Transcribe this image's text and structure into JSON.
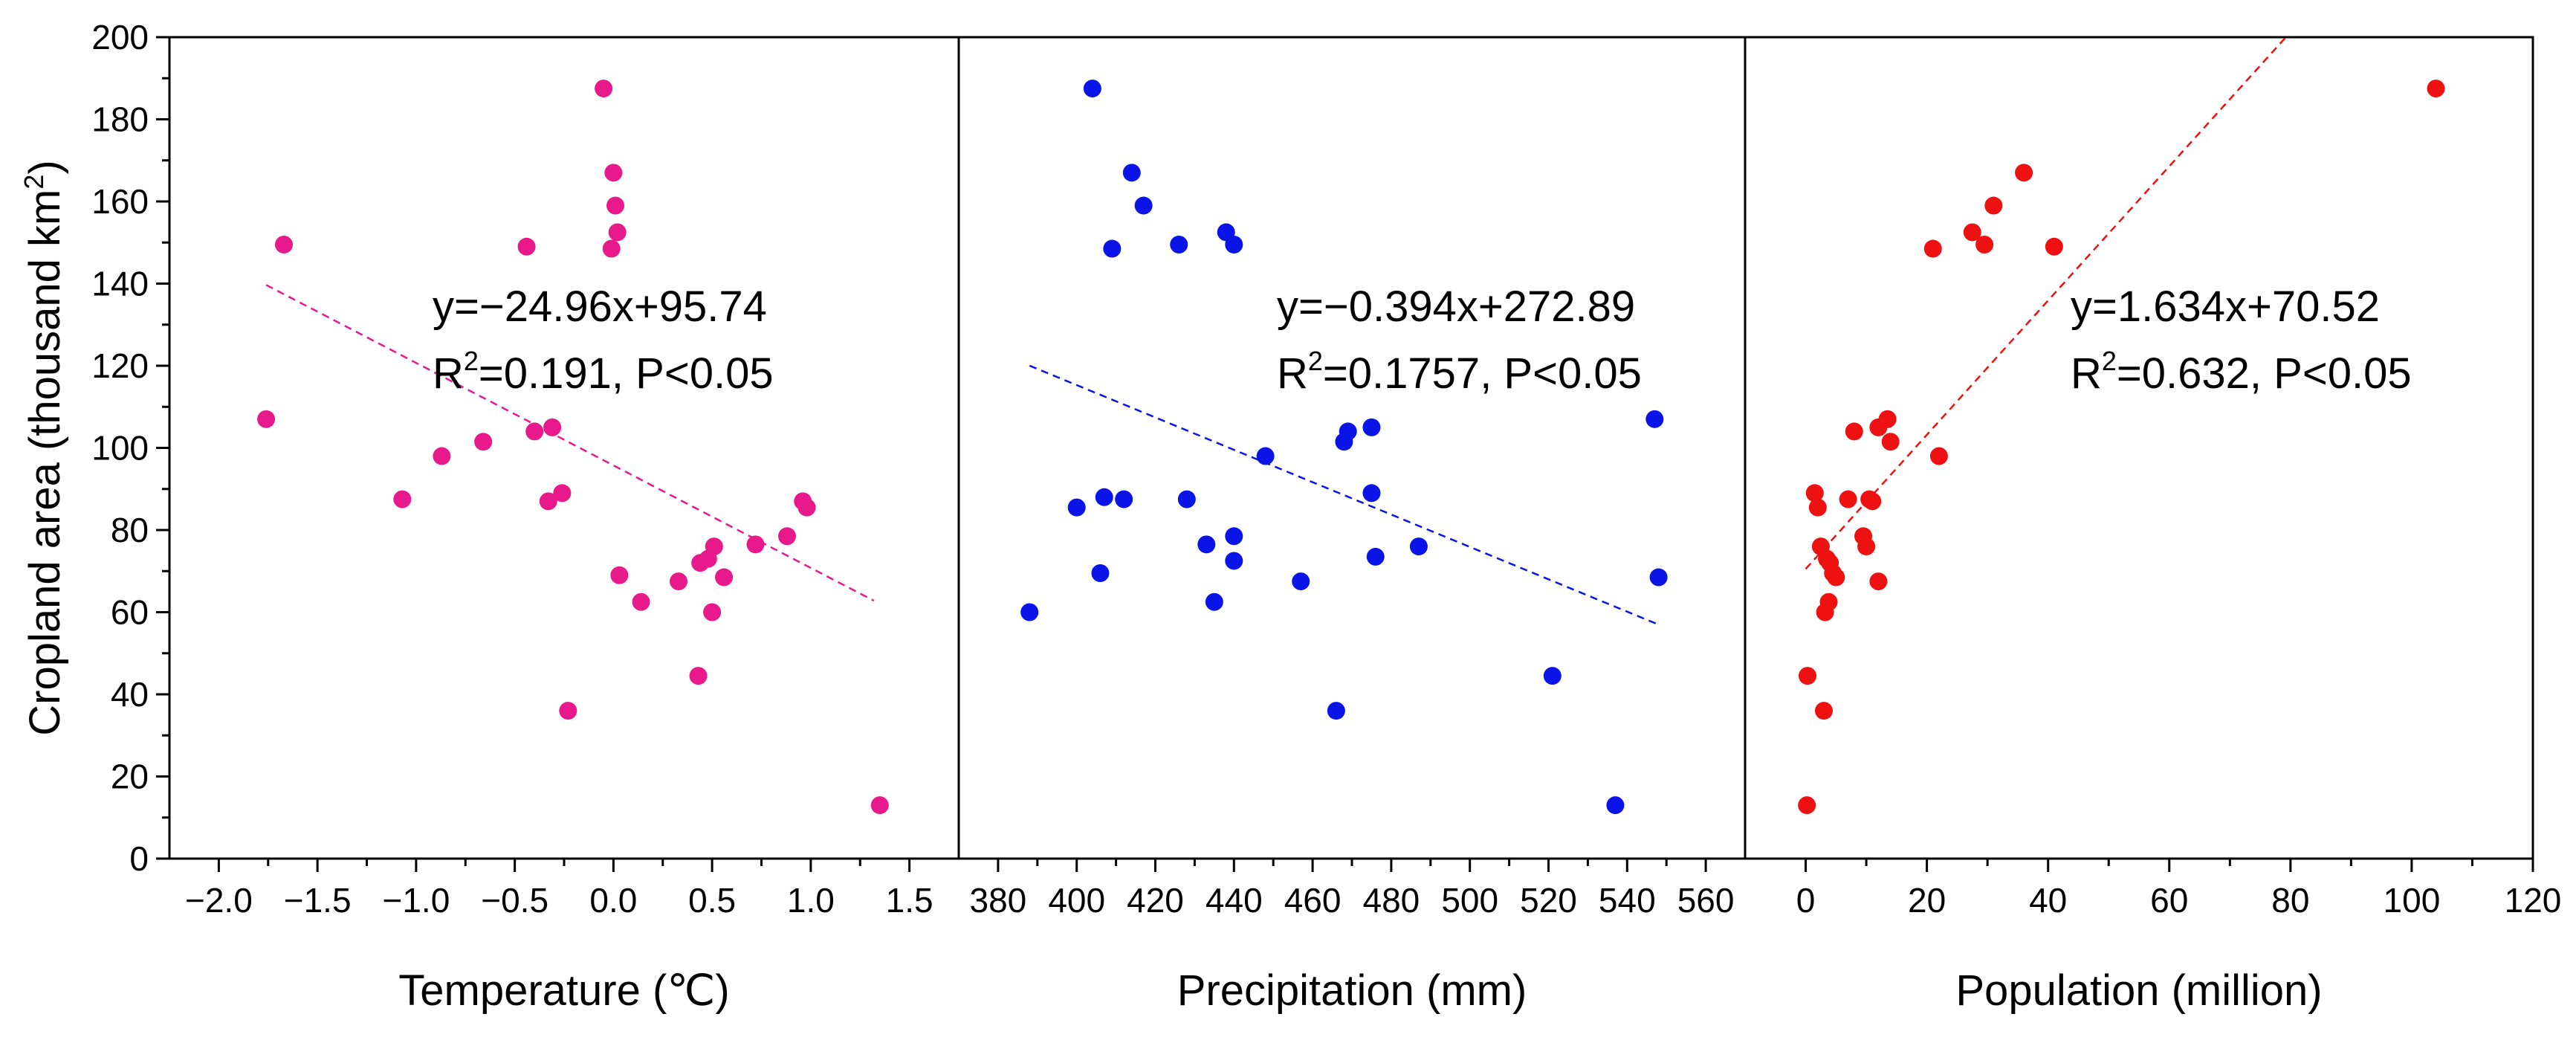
{
  "chart_data": {
    "type": "scatter",
    "y_axis": {
      "label_prefix": "Cropland area (thousand km",
      "label_sup": "2",
      "label_suffix": ")",
      "range": [
        0,
        200
      ],
      "ticks": [
        0,
        20,
        40,
        60,
        80,
        100,
        120,
        140,
        160,
        180,
        200
      ],
      "tick_labels": [
        "0",
        "20",
        "40",
        "60",
        "80",
        "100",
        "120",
        "140",
        "160",
        "180",
        "200"
      ],
      "minor_step": 10
    },
    "panels": [
      {
        "id": "temperature",
        "xlabel": "Temperature (℃)",
        "xlim": [
          -2.25,
          1.75
        ],
        "xticks": [
          -2.0,
          -1.5,
          -1.0,
          -0.5,
          0.0,
          0.5,
          1.0,
          1.5
        ],
        "xtick_labels": [
          "−2.0",
          "−1.5",
          "−1.0",
          "−0.5",
          "0.0",
          "0.5",
          "1.0",
          "1.5"
        ],
        "color": "#e8198b",
        "equation": "y=−24.96x+95.74",
        "r2_prefix": "R",
        "r2_sup": "2",
        "r2_suffix": "=0.191, P<0.05",
        "fit": {
          "slope": -24.96,
          "intercept": 95.74,
          "x_range": [
            -1.76,
            1.32
          ]
        },
        "points": [
          [
            -1.76,
            107
          ],
          [
            -1.67,
            149.5
          ],
          [
            -1.07,
            87.5
          ],
          [
            -0.87,
            98
          ],
          [
            -0.66,
            101.5
          ],
          [
            -0.44,
            149
          ],
          [
            -0.4,
            104
          ],
          [
            -0.33,
            87
          ],
          [
            -0.31,
            105
          ],
          [
            -0.26,
            89
          ],
          [
            -0.23,
            36
          ],
          [
            -0.05,
            187.5
          ],
          [
            -0.01,
            148.5
          ],
          [
            0.0,
            167
          ],
          [
            0.01,
            159
          ],
          [
            0.02,
            152.5
          ],
          [
            0.03,
            69
          ],
          [
            0.14,
            62.5
          ],
          [
            0.33,
            67.5
          ],
          [
            0.43,
            44.5
          ],
          [
            0.44,
            72
          ],
          [
            0.48,
            73
          ],
          [
            0.5,
            60
          ],
          [
            0.51,
            76
          ],
          [
            0.56,
            68.5
          ],
          [
            0.72,
            76.5
          ],
          [
            0.88,
            78.5
          ],
          [
            0.96,
            87
          ],
          [
            0.98,
            85.5
          ],
          [
            1.35,
            13
          ]
        ]
      },
      {
        "id": "precipitation",
        "xlabel": "Precipitation (mm)",
        "xlim": [
          370,
          570
        ],
        "xticks": [
          380,
          400,
          420,
          440,
          460,
          480,
          500,
          520,
          540,
          560
        ],
        "xtick_labels": [
          "380",
          "400",
          "420",
          "440",
          "460",
          "480",
          "500",
          "520",
          "540",
          "560"
        ],
        "color": "#0a14e6",
        "equation": "y=−0.394x+272.89",
        "r2_prefix": "R",
        "r2_sup": "2",
        "r2_suffix": "=0.1757, P<0.05",
        "fit": {
          "slope": -0.394,
          "intercept": 272.89,
          "x_range": [
            388,
            548
          ]
        },
        "points": [
          [
            388,
            60
          ],
          [
            400,
            85.5
          ],
          [
            404,
            187.5
          ],
          [
            406,
            69.5
          ],
          [
            407,
            88
          ],
          [
            409,
            148.5
          ],
          [
            412,
            87.5
          ],
          [
            414,
            167
          ],
          [
            417,
            159
          ],
          [
            426,
            149.5
          ],
          [
            428,
            87.5
          ],
          [
            433,
            76.5
          ],
          [
            435,
            62.5
          ],
          [
            438,
            152.5
          ],
          [
            440,
            149.5
          ],
          [
            440,
            78.5
          ],
          [
            440,
            72.5
          ],
          [
            448,
            98
          ],
          [
            457,
            67.5
          ],
          [
            466,
            36
          ],
          [
            468,
            101.5
          ],
          [
            469,
            104
          ],
          [
            475,
            105
          ],
          [
            475,
            89
          ],
          [
            476,
            73.5
          ],
          [
            487,
            76
          ],
          [
            521,
            44.5
          ],
          [
            537,
            13
          ],
          [
            547,
            107
          ],
          [
            548,
            68.5
          ]
        ]
      },
      {
        "id": "population",
        "xlabel": "Population (million)",
        "xlim": [
          -10,
          120
        ],
        "xticks": [
          0,
          20,
          40,
          60,
          80,
          100,
          120
        ],
        "xtick_labels": [
          "0",
          "20",
          "40",
          "60",
          "80",
          "100",
          "120"
        ],
        "color": "#ee1111",
        "equation": "y=1.634x+70.52",
        "r2_prefix": "R",
        "r2_sup": "2",
        "r2_suffix": "=0.632, P<0.05",
        "fit": {
          "slope": 1.634,
          "intercept": 70.52,
          "x_range": [
            0,
            79.3
          ]
        },
        "points": [
          [
            0.2,
            13
          ],
          [
            0.3,
            44.5
          ],
          [
            1.5,
            89
          ],
          [
            2,
            85.5
          ],
          [
            2.5,
            76
          ],
          [
            3,
            36
          ],
          [
            3.2,
            60
          ],
          [
            3.5,
            73
          ],
          [
            3.8,
            62.5
          ],
          [
            4,
            72
          ],
          [
            4.5,
            69.5
          ],
          [
            5,
            68.5
          ],
          [
            7,
            87.5
          ],
          [
            8,
            104
          ],
          [
            9.5,
            78.5
          ],
          [
            10,
            76
          ],
          [
            10.5,
            87.5
          ],
          [
            11,
            87
          ],
          [
            12,
            105
          ],
          [
            12,
            67.5
          ],
          [
            13.5,
            107
          ],
          [
            14,
            101.5
          ],
          [
            21,
            148.5
          ],
          [
            22,
            98
          ],
          [
            27.5,
            152.5
          ],
          [
            29.5,
            149.5
          ],
          [
            31,
            159
          ],
          [
            36,
            167
          ],
          [
            41,
            149
          ],
          [
            104,
            187.5
          ]
        ]
      }
    ]
  }
}
